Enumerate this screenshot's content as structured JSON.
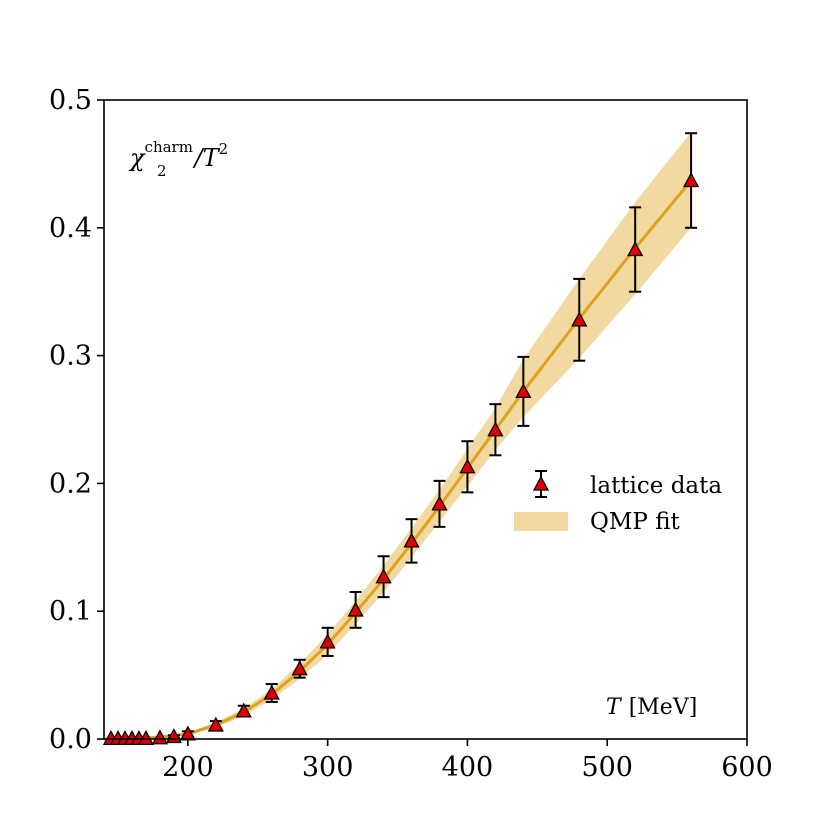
{
  "chart_data": {
    "type": "scatter",
    "title": "",
    "xlabel": "T [MeV]",
    "ylabel": "",
    "xlim": [
      140,
      600
    ],
    "ylim": [
      0.0,
      0.5
    ],
    "xticks": [
      200,
      300,
      400,
      500,
      600
    ],
    "xtick_labels": [
      "200",
      "300",
      "400",
      "500",
      "600"
    ],
    "yticks": [
      0.0,
      0.1,
      0.2,
      0.3,
      0.4,
      0.5
    ],
    "ytick_labels": [
      "0.0",
      "0.1",
      "0.2",
      "0.3",
      "0.4",
      "0.5"
    ],
    "annotation": {
      "quantity_symbol": "χ",
      "subscript": "2",
      "superscript": "charm",
      "divider": "/T",
      "power": "2"
    },
    "x_axis_label": {
      "symbol": "T",
      "unit": "[MeV]"
    },
    "legend": {
      "position": "center-right",
      "entries": [
        {
          "label": "lattice data",
          "kind": "errorbar-triangle"
        },
        {
          "label": "QMP fit",
          "kind": "band"
        }
      ]
    },
    "series": [
      {
        "name": "lattice data",
        "kind": "errorbar",
        "marker_color": "#e00000",
        "edge_color": "#000000",
        "x": [
          145,
          150,
          155,
          160,
          165,
          170,
          180,
          190,
          200,
          220,
          240,
          260,
          280,
          300,
          320,
          340,
          360,
          380,
          400,
          420,
          440,
          480,
          520,
          560
        ],
        "y": [
          0.0005,
          0.0005,
          0.0005,
          0.0005,
          0.0005,
          0.0005,
          0.001,
          0.002,
          0.004,
          0.011,
          0.022,
          0.036,
          0.055,
          0.076,
          0.101,
          0.127,
          0.155,
          0.184,
          0.213,
          0.242,
          0.272,
          0.328,
          0.383,
          0.437
        ],
        "yerr": [
          0.0,
          0.0,
          0.0,
          0.0,
          0.0,
          0.0,
          0.0,
          0.001,
          0.002,
          0.003,
          0.004,
          0.007,
          0.007,
          0.011,
          0.014,
          0.016,
          0.017,
          0.018,
          0.02,
          0.02,
          0.027,
          0.032,
          0.033,
          0.037
        ]
      },
      {
        "name": "QMP fit",
        "kind": "line-with-band",
        "line_color": "#dda21e",
        "band_color": "#f2d9a1",
        "x": [
          140,
          160,
          180,
          200,
          220,
          240,
          260,
          280,
          300,
          320,
          340,
          360,
          380,
          400,
          420,
          440,
          480,
          520,
          560
        ],
        "y": [
          0.0,
          0.0003,
          0.0015,
          0.004,
          0.011,
          0.021,
          0.035,
          0.053,
          0.074,
          0.099,
          0.125,
          0.153,
          0.182,
          0.212,
          0.242,
          0.272,
          0.329,
          0.384,
          0.437
        ],
        "lower": [
          0.0,
          0.0002,
          0.001,
          0.003,
          0.009,
          0.018,
          0.031,
          0.047,
          0.066,
          0.09,
          0.115,
          0.142,
          0.17,
          0.198,
          0.226,
          0.252,
          0.298,
          0.348,
          0.4
        ],
        "upper": [
          0.0,
          0.0005,
          0.002,
          0.005,
          0.013,
          0.024,
          0.039,
          0.059,
          0.082,
          0.108,
          0.136,
          0.165,
          0.195,
          0.227,
          0.259,
          0.297,
          0.36,
          0.42,
          0.475
        ]
      }
    ]
  }
}
